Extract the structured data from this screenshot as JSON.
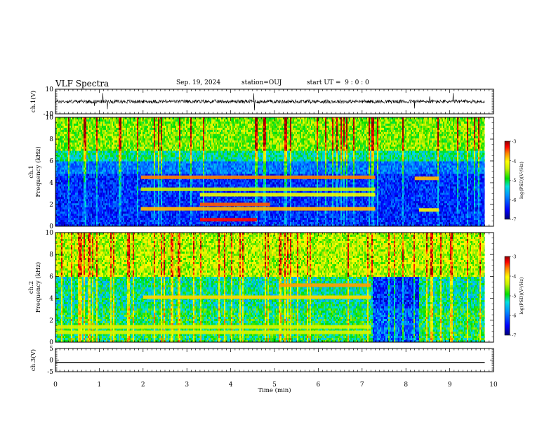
{
  "header": {
    "title": "VLF Spectra",
    "date": "Sep. 19, 2024",
    "station": "station=OUJ",
    "start": "start UT =  9 : 0 : 0"
  },
  "colors": {
    "spectrogram_scale": [
      "#00007a",
      "#0000ff",
      "#0078ff",
      "#00e0e0",
      "#00e000",
      "#b4f000",
      "#ffff00",
      "#ff8000",
      "#ff0000",
      "#800000"
    ]
  },
  "chart_data": [
    {
      "type": "line",
      "panel": "ch1-waveform",
      "ylabel": "ch.1(V)",
      "ylim": [
        -10,
        10
      ],
      "yticks": [
        "10",
        "-10"
      ],
      "xlim": [
        0,
        10
      ],
      "note_values": "noisy waveform centred near 0 V with occasional spikes",
      "baseline": 0
    },
    {
      "type": "heatmap",
      "panel": "ch1-spectrogram",
      "ylabel": "ch.1\nFrequency (kHz)",
      "ylim": [
        0,
        10
      ],
      "yticks": [
        "0",
        "2",
        "4",
        "6",
        "8",
        "10"
      ],
      "xlim": [
        0,
        10
      ],
      "data_end_min": 9.8,
      "colorbar": {
        "label": "log(PSD)(V²/Hz)",
        "range": [
          -7,
          -3
        ],
        "ticks": [
          "-3",
          "-4",
          "-5",
          "-6",
          "-7"
        ]
      },
      "bands_khz": [
        {
          "freq": 4.5,
          "from": 1.95,
          "to": 7.3,
          "level": -3.6
        },
        {
          "freq": 3.4,
          "from": 1.95,
          "to": 7.3,
          "level": -4.4
        },
        {
          "freq": 2.9,
          "from": 3.3,
          "to": 7.3,
          "level": -4.2
        },
        {
          "freq": 2.0,
          "from": 3.3,
          "to": 4.9,
          "level": -3.5
        },
        {
          "freq": 1.6,
          "from": 1.95,
          "to": 7.3,
          "level": -3.8
        },
        {
          "freq": 0.6,
          "from": 3.3,
          "to": 4.6,
          "level": -3.3
        },
        {
          "freq": 4.4,
          "from": 8.2,
          "to": 8.75,
          "level": -3.8
        },
        {
          "freq": 1.5,
          "from": 8.3,
          "to": 8.75,
          "level": -4.0
        }
      ]
    },
    {
      "type": "heatmap",
      "panel": "ch2-spectrogram",
      "ylabel": "ch.2\nFrequency (kHz)",
      "ylim": [
        0,
        10
      ],
      "yticks": [
        "0",
        "2",
        "4",
        "6",
        "8",
        "10"
      ],
      "xlim": [
        0,
        10
      ],
      "data_end_min": 9.8,
      "colorbar": {
        "label": "log(PSD)(V²/Hz)",
        "range": [
          -7,
          -3
        ],
        "ticks": [
          "-3",
          "-4",
          "-5",
          "-6",
          "-7"
        ]
      },
      "bands_khz": [
        {
          "freq": 5.2,
          "from": 5.1,
          "to": 7.2,
          "level": -3.7
        },
        {
          "freq": 4.1,
          "from": 2.0,
          "to": 7.2,
          "level": -3.9
        },
        {
          "freq": 1.4,
          "from": 0.0,
          "to": 7.2,
          "level": -4.3
        },
        {
          "freq": 0.9,
          "from": 0.0,
          "to": 7.2,
          "level": -4.3
        }
      ]
    },
    {
      "type": "line",
      "panel": "ch3-waveform",
      "ylabel": "ch.3(V)",
      "ylim": [
        -5,
        5
      ],
      "yticks": [
        "5",
        "0",
        "-5"
      ],
      "xlim": [
        0,
        10
      ],
      "baseline": -1,
      "xlabel": "Time (min)",
      "xticks": [
        "0",
        "1",
        "2",
        "3",
        "4",
        "5",
        "6",
        "7",
        "8",
        "9",
        "10"
      ]
    }
  ]
}
